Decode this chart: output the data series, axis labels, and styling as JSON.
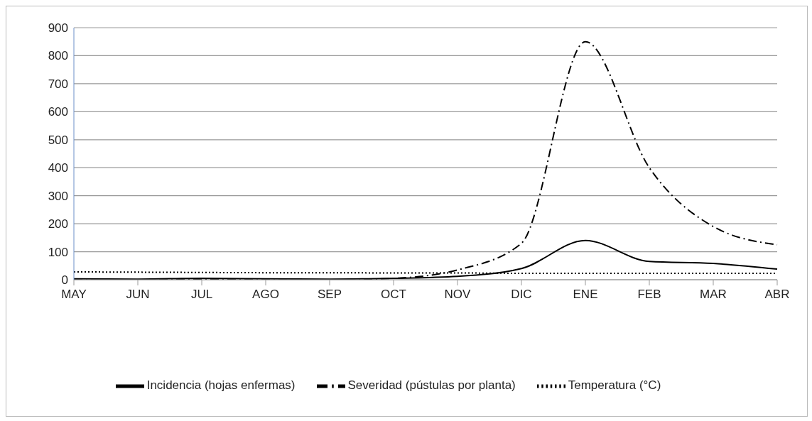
{
  "chart_data": {
    "type": "line",
    "categories": [
      "MAY",
      "JUN",
      "JUL",
      "AGO",
      "SEP",
      "OCT",
      "NOV",
      "DIC",
      "ENE",
      "FEB",
      "MAR",
      "ABR"
    ],
    "series": [
      {
        "name": "Temperatura (°C)",
        "color": "#000000",
        "line_style": "dotted",
        "values": [
          28,
          27,
          26,
          25,
          25,
          24,
          24,
          23,
          23,
          23,
          23,
          23
        ]
      },
      {
        "name": "Incidencia (hojas enfermas)",
        "color": "#000000",
        "line_style": "solid",
        "values": [
          3,
          2,
          5,
          3,
          2,
          5,
          12,
          40,
          140,
          65,
          58,
          38
        ]
      },
      {
        "name": "Severidad (pústulas por planta)",
        "color": "#000000",
        "line_style": "dashdot",
        "values": [
          0,
          0,
          0,
          0,
          0,
          5,
          35,
          130,
          850,
          400,
          190,
          125
        ]
      }
    ],
    "ylim": [
      0,
      900
    ],
    "yticks": [
      0,
      100,
      200,
      300,
      400,
      500,
      600,
      700,
      800,
      900
    ],
    "grid": "y",
    "legend": "bottom",
    "marker": "none"
  }
}
